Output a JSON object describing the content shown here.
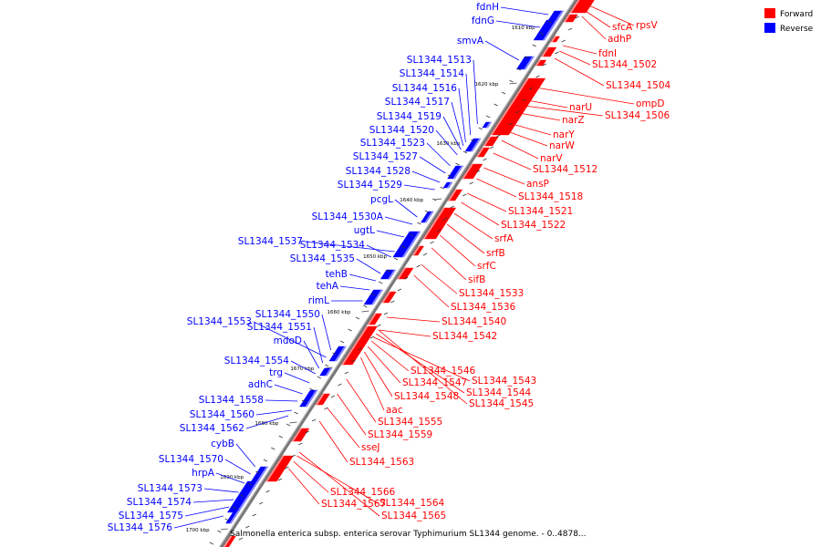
{
  "caption": "Salmonella enterica subsp. enterica serovar Typhimurium SL1344 genome. - 0..4878...",
  "legend": [
    {
      "label": "Forward",
      "color": "#ff0000"
    },
    {
      "label": "Reverse",
      "color": "#0000ff"
    }
  ],
  "ticks": [
    "1610 kbp",
    "1620 kbp",
    "1630 kbp",
    "1640 kbp",
    "1650 kbp",
    "1660 kbp",
    "1670 kbp",
    "1680 kbp",
    "1690 kbp",
    "1700 kbp"
  ],
  "reverse_labels": [
    "fdnH",
    "fdnG",
    "smvA",
    "SL1344_1513",
    "SL1344_1514",
    "SL1344_1516",
    "SL1344_1517",
    "SL1344_1519",
    "SL1344_1520",
    "SL1344_1523",
    "SL1344_1527",
    "SL1344_1528",
    "SL1344_1529",
    "pcgL",
    "SL1344_1530A",
    "ugtL",
    "SL1344_1537",
    "SL1344_1534",
    "SL1344_1535",
    "tehB",
    "tehA",
    "rimL",
    "SL1344_1550",
    "SL1344_1553",
    "SL1344_1551",
    "mdoD",
    "SL1344_1554",
    "trg",
    "adhC",
    "SL1344_1558",
    "SL1344_1560",
    "SL1344_1562",
    "cybB",
    "SL1344_1570",
    "hrpA",
    "SL1344_1573",
    "SL1344_1574",
    "SL1344_1575",
    "SL1344_1576"
  ],
  "forward_labels": [
    "rpsV",
    "sfcA",
    "adhP",
    "fdnI",
    "SL1344_1502",
    "SL1344_1504",
    "ompD",
    "narU",
    "SL1344_1506",
    "narZ",
    "narY",
    "narW",
    "narV",
    "SL1344_1512",
    "ansP",
    "SL1344_1518",
    "SL1344_1521",
    "SL1344_1522",
    "srfA",
    "srfB",
    "srfC",
    "sifB",
    "SL1344_1533",
    "SL1344_1536",
    "SL1344_1540",
    "SL1344_1542",
    "SL1344_1546",
    "SL1344_1543",
    "SL1344_1547",
    "SL1344_1544",
    "SL1344_1548",
    "SL1344_1545",
    "aac",
    "SL1344_1555",
    "SL1344_1559",
    "sseJ",
    "SL1344_1563",
    "SL1344_1566",
    "SL1344_1564",
    "SL1344_1567",
    "SL1344_1565"
  ]
}
